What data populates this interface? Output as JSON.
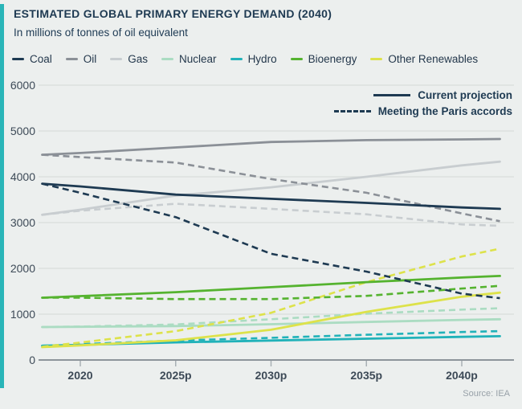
{
  "title": "ESTIMATED GLOBAL PRIMARY ENERGY DEMAND (2040)",
  "subtitle": "In millions of tonnes of oil equivalent",
  "source": "Source: IEA",
  "colors": {
    "background": "#ecefee",
    "accent_bar": "#29b5b8",
    "title_text": "#1e3a52",
    "grid": "#d9dedb",
    "axis_line": "#8d959b",
    "tick_mark": "#a9b0b5",
    "tick_text": "#3d4a57",
    "coal": "#1e3a52",
    "oil": "#8b9097",
    "gas": "#c8cdd0",
    "nuclear": "#abdcc2",
    "hydro": "#21b2b9",
    "bioenergy": "#55b32f",
    "other_renewables": "#dde24a"
  },
  "legend": {
    "fuels": [
      {
        "id": "coal",
        "label": "Coal",
        "color": "#1e3a52"
      },
      {
        "id": "oil",
        "label": "Oil",
        "color": "#8b9097"
      },
      {
        "id": "gas",
        "label": "Gas",
        "color": "#c8cdd0"
      },
      {
        "id": "nuclear",
        "label": "Nuclear",
        "color": "#abdcc2"
      },
      {
        "id": "hydro",
        "label": "Hydro",
        "color": "#21b2b9"
      },
      {
        "id": "bioenergy",
        "label": "Bioenergy",
        "color": "#55b32f"
      },
      {
        "id": "other_renewables",
        "label": "Other Renewables",
        "color": "#dde24a"
      }
    ]
  },
  "scenario_legend": [
    {
      "id": "current",
      "label": "Current projection",
      "style": "solid"
    },
    {
      "id": "paris",
      "label": "Meeting the Paris accords",
      "style": "dashed"
    }
  ],
  "chart_data": {
    "type": "line",
    "title": "ESTIMATED GLOBAL PRIMARY ENERGY DEMAND (2040)",
    "subtitle": "In millions of tonnes of oil equivalent",
    "unit": "millions of tonnes of oil equivalent",
    "x": [
      2018,
      2020,
      2025,
      2030,
      2035,
      2040,
      2042
    ],
    "x_tick_labels": [
      {
        "year": 2020,
        "label": "2020"
      },
      {
        "year": 2025,
        "label": "2025p"
      },
      {
        "year": 2030,
        "label": "2030p"
      },
      {
        "year": 2035,
        "label": "2035p"
      },
      {
        "year": 2040,
        "label": "2040p"
      }
    ],
    "ylim": [
      0,
      6000
    ],
    "y_ticks": [
      0,
      1000,
      2000,
      3000,
      4000,
      5000,
      6000
    ],
    "grid": "horizontal",
    "legend_position": "top",
    "series": [
      {
        "name": "Gas",
        "scenario": "Meeting the Paris accords",
        "color": "#c8cdd0",
        "dash": true,
        "values": [
          3170,
          3260,
          3410,
          3300,
          3180,
          2960,
          2930
        ]
      },
      {
        "name": "Gas",
        "scenario": "Current projection",
        "color": "#c8cdd0",
        "dash": false,
        "values": [
          3170,
          3280,
          3590,
          3770,
          4000,
          4250,
          4330
        ]
      },
      {
        "name": "Oil",
        "scenario": "Meeting the Paris accords",
        "color": "#8b9097",
        "dash": true,
        "values": [
          4480,
          4430,
          4310,
          3950,
          3650,
          3200,
          3030
        ]
      },
      {
        "name": "Oil",
        "scenario": "Current projection",
        "color": "#8b9097",
        "dash": false,
        "values": [
          4480,
          4520,
          4640,
          4760,
          4800,
          4815,
          4825
        ]
      },
      {
        "name": "Nuclear",
        "scenario": "Meeting the Paris accords",
        "color": "#abdcc2",
        "dash": true,
        "values": [
          720,
          730,
          775,
          890,
          1010,
          1100,
          1130
        ]
      },
      {
        "name": "Nuclear",
        "scenario": "Current projection",
        "color": "#abdcc2",
        "dash": false,
        "values": [
          720,
          725,
          740,
          780,
          830,
          875,
          890
        ]
      },
      {
        "name": "Hydro",
        "scenario": "Meeting the Paris accords",
        "color": "#21b2b9",
        "dash": true,
        "values": [
          310,
          345,
          425,
          485,
          550,
          610,
          630
        ]
      },
      {
        "name": "Hydro",
        "scenario": "Current projection",
        "color": "#21b2b9",
        "dash": false,
        "values": [
          310,
          330,
          385,
          425,
          465,
          505,
          520
        ]
      },
      {
        "name": "Other Renewables",
        "scenario": "Meeting the Paris accords",
        "color": "#dde24a",
        "dash": true,
        "values": [
          290,
          380,
          630,
          1030,
          1700,
          2260,
          2430
        ]
      },
      {
        "name": "Other Renewables",
        "scenario": "Current projection",
        "color": "#dde24a",
        "dash": false,
        "values": [
          280,
          320,
          430,
          660,
          1050,
          1380,
          1470
        ]
      },
      {
        "name": "Bioenergy",
        "scenario": "Meeting the Paris accords",
        "color": "#55b32f",
        "dash": true,
        "values": [
          1360,
          1360,
          1330,
          1330,
          1400,
          1560,
          1620
        ]
      },
      {
        "name": "Bioenergy",
        "scenario": "Current projection",
        "color": "#55b32f",
        "dash": false,
        "values": [
          1360,
          1395,
          1480,
          1590,
          1700,
          1800,
          1835
        ]
      },
      {
        "name": "Coal",
        "scenario": "Meeting the Paris accords",
        "color": "#1e3a52",
        "dash": true,
        "values": [
          3850,
          3650,
          3120,
          2320,
          1930,
          1450,
          1350
        ]
      },
      {
        "name": "Coal",
        "scenario": "Current projection",
        "color": "#1e3a52",
        "dash": false,
        "values": [
          3850,
          3790,
          3610,
          3520,
          3430,
          3330,
          3300
        ]
      }
    ]
  }
}
